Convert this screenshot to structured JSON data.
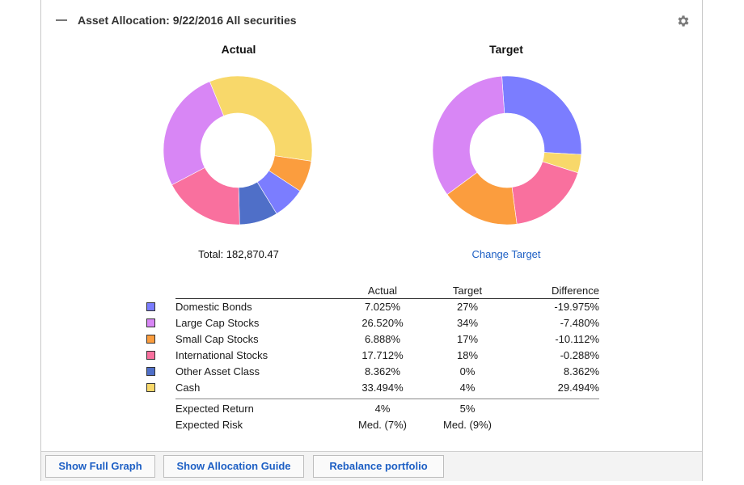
{
  "header": {
    "title": "Asset Allocation:  9/22/2016  All securities"
  },
  "charts": {
    "actual_title": "Actual",
    "target_title": "Target",
    "total_label": "Total: 182,870.47",
    "change_target_label": "Change Target"
  },
  "colors": {
    "domestic_bonds": "#7b7dff",
    "large_cap": "#d886f5",
    "small_cap": "#fb9d3e",
    "international": "#f9709e",
    "other": "#4f6fc8",
    "cash": "#f8d86a"
  },
  "table": {
    "headers": {
      "actual": "Actual",
      "target": "Target",
      "difference": "Difference"
    },
    "rows": [
      {
        "name": "Domestic Bonds",
        "actual": "7.025%",
        "target": "27%",
        "difference": "-19.975%",
        "color": "#7b7dff"
      },
      {
        "name": "Large Cap Stocks",
        "actual": "26.520%",
        "target": "34%",
        "difference": "-7.480%",
        "color": "#d886f5"
      },
      {
        "name": "Small Cap Stocks",
        "actual": "6.888%",
        "target": "17%",
        "difference": "-10.112%",
        "color": "#fb9d3e"
      },
      {
        "name": "International Stocks",
        "actual": "17.712%",
        "target": "18%",
        "difference": "-0.288%",
        "color": "#f9709e"
      },
      {
        "name": "Other Asset Class",
        "actual": "8.362%",
        "target": "0%",
        "difference": "8.362%",
        "color": "#4f6fc8"
      },
      {
        "name": "Cash",
        "actual": "33.494%",
        "target": "4%",
        "difference": "29.494%",
        "color": "#f8d86a"
      }
    ],
    "expected_return": {
      "label": "Expected Return",
      "actual": "4%",
      "target": "5%"
    },
    "expected_risk": {
      "label": "Expected Risk",
      "actual": "Med. (7%)",
      "target": "Med. (9%)"
    }
  },
  "chart_data": [
    {
      "type": "pie",
      "title": "Actual",
      "categories": [
        "Domestic Bonds",
        "Large Cap Stocks",
        "Small Cap Stocks",
        "International Stocks",
        "Other Asset Class",
        "Cash"
      ],
      "values": [
        7.025,
        26.52,
        6.888,
        17.712,
        8.362,
        33.494
      ],
      "colors": [
        "#7b7dff",
        "#d886f5",
        "#fb9d3e",
        "#f9709e",
        "#4f6fc8",
        "#f8d86a"
      ],
      "drawing_order": [
        "Cash",
        "Small Cap Stocks",
        "Domestic Bonds",
        "Other Asset Class",
        "International Stocks",
        "Large Cap Stocks"
      ],
      "start_angle_deg": 337.8,
      "donut": true
    },
    {
      "type": "pie",
      "title": "Target",
      "categories": [
        "Domestic Bonds",
        "Large Cap Stocks",
        "Small Cap Stocks",
        "International Stocks",
        "Other Asset Class",
        "Cash"
      ],
      "values": [
        27,
        34,
        17,
        18,
        0,
        4
      ],
      "colors": [
        "#7b7dff",
        "#d886f5",
        "#fb9d3e",
        "#f9709e",
        "#4f6fc8",
        "#f8d86a"
      ],
      "drawing_order": [
        "Domestic Bonds",
        "Cash",
        "International Stocks",
        "Small Cap Stocks",
        "Large Cap Stocks"
      ],
      "start_angle_deg": 356,
      "donut": true
    }
  ],
  "footer": {
    "show_full_graph": "Show Full Graph",
    "show_allocation_guide": "Show Allocation Guide",
    "rebalance_portfolio": "Rebalance portfolio"
  }
}
